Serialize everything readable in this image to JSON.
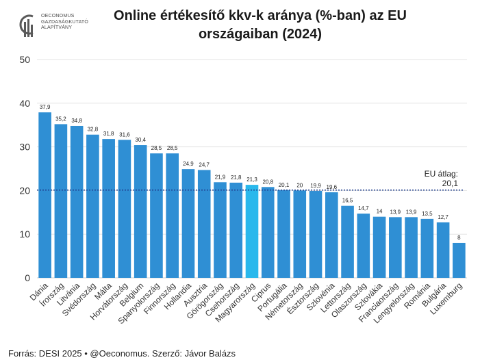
{
  "logo": {
    "line1": "OECONOMUS",
    "line2": "GAZDASÁGKUTATÓ",
    "line3": "ALAPÍTVÁNY"
  },
  "footer": {
    "source": "Forrás: DESI 2025 • @Oeconomus. Szerző: Jávor Balázs"
  },
  "colors": {
    "bar": "#2f8fd4",
    "highlight": "#29b8ec",
    "avg_line": "#1f3f8f",
    "grid": "#e3e3e3"
  },
  "chart_data": {
    "type": "bar",
    "title": "Online értékesítő kkv-k aránya (%-ban) az EU országaiban (2024)",
    "categories": [
      "Dánia",
      "Írország",
      "Litvánia",
      "Svédország",
      "Málta",
      "Horvátország",
      "Belgium",
      "Spanyolország",
      "Finnország",
      "Hollandia",
      "Ausztria",
      "Görögország",
      "Csehország",
      "Magyarország",
      "Ciprus",
      "Portugália",
      "Németország",
      "Észtország",
      "Szlovénia",
      "Lettország",
      "Olaszország",
      "Szlovákia",
      "Franciaország",
      "Lengyelország",
      "Románia",
      "Bulgária",
      "Luxemburg"
    ],
    "values": [
      37.9,
      35.2,
      34.8,
      32.8,
      31.8,
      31.6,
      30.4,
      28.5,
      28.5,
      24.9,
      24.7,
      21.9,
      21.8,
      21.3,
      20.8,
      20.1,
      20,
      19.9,
      19.6,
      16.5,
      14.7,
      14,
      13.9,
      13.9,
      13.5,
      12.7,
      8
    ],
    "value_labels": [
      "37,9",
      "35,2",
      "34,8",
      "32,8",
      "31,8",
      "31,6",
      "30,4",
      "28,5",
      "28,5",
      "24,9",
      "24,7",
      "21,9",
      "21,8",
      "21,3",
      "20,8",
      "20,1",
      "20",
      "19,9",
      "19,6",
      "16,5",
      "14,7",
      "14",
      "13,9",
      "13,9",
      "13,5",
      "12,7",
      "8"
    ],
    "highlight_category": "Magyarország",
    "ylim": [
      0,
      50
    ],
    "yticks": [
      0,
      10,
      20,
      30,
      40,
      50
    ],
    "grid": true,
    "reference_line": {
      "value": 20.1,
      "label": "EU átlag:",
      "value_label": "20,1"
    },
    "xlabel": "",
    "ylabel": ""
  }
}
